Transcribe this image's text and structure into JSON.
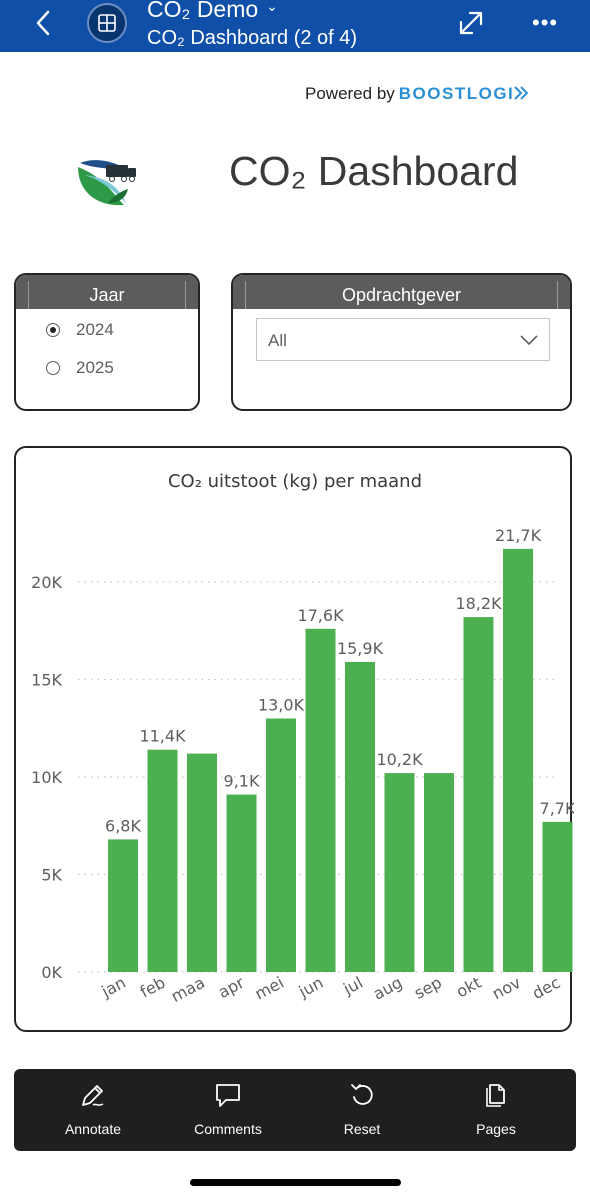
{
  "header": {
    "app_title": "CO₂ Demo",
    "page_title": "CO₂ Dashboard (2 of 4)"
  },
  "powered_by": {
    "prefix": "Powered by",
    "brand": "BOOSTLOGI"
  },
  "dashboard_title": "CO₂ Dashboard",
  "filters": {
    "jaar": {
      "title": "Jaar",
      "options": [
        {
          "label": "2024",
          "selected": true
        },
        {
          "label": "2025",
          "selected": false
        }
      ]
    },
    "opdrachtgever": {
      "title": "Opdrachtgever",
      "value": "All"
    }
  },
  "chart_data": {
    "type": "bar",
    "title": "CO₂ uitstoot (kg) per maand",
    "categories": [
      "jan",
      "feb",
      "maa",
      "apr",
      "mei",
      "jun",
      "jul",
      "aug",
      "sep",
      "okt",
      "nov",
      "dec"
    ],
    "values": [
      6800,
      11400,
      11200,
      9100,
      13000,
      17600,
      15900,
      10200,
      10200,
      18200,
      21700,
      7700
    ],
    "data_labels": [
      "6,8K",
      "11,4K",
      "",
      "9,1K",
      "13,0K",
      "17,6K",
      "15,9K",
      "10,2K",
      "",
      "18,2K",
      "21,7K",
      "7,7K"
    ],
    "y_ticks": [
      "0K",
      "5K",
      "10K",
      "15K",
      "20K"
    ],
    "y_tick_values": [
      0,
      5000,
      10000,
      15000,
      20000
    ],
    "ylim": [
      0,
      21700
    ],
    "grid": true,
    "bar_color": "#4caf50"
  },
  "toolbar": {
    "annotate": "Annotate",
    "comments": "Comments",
    "reset": "Reset",
    "pages": "Pages"
  },
  "colors": {
    "header_bg": "#0f4fa8",
    "brand_blue": "#2b8fd6",
    "toolbar_bg": "#201f1e"
  }
}
